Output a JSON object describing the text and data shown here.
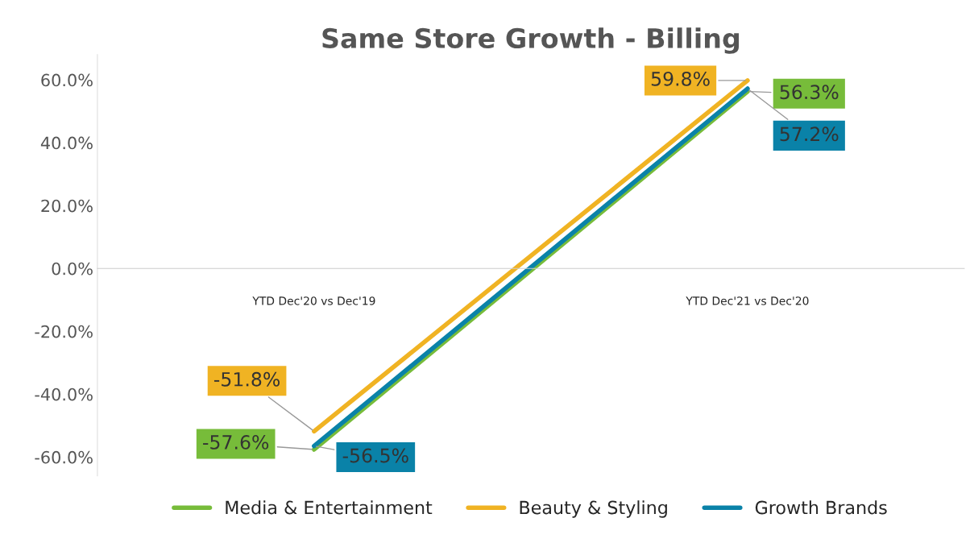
{
  "chart_data": {
    "type": "line",
    "title": "Same Store Growth - Billing",
    "categories": [
      "YTD Dec'20 vs Dec'19",
      "YTD Dec'21 vs Dec'20"
    ],
    "series": [
      {
        "name": "Media & Entertainment",
        "color": "#77bc3a",
        "values": [
          -57.6,
          56.3
        ],
        "value_labels": [
          "-57.6%",
          "56.3%"
        ]
      },
      {
        "name": "Beauty & Styling",
        "color": "#f0b323",
        "values": [
          -51.8,
          59.8
        ],
        "value_labels": [
          "-51.8%",
          "59.8%"
        ]
      },
      {
        "name": "Growth Brands",
        "color": "#0a82a8",
        "values": [
          -56.5,
          57.2
        ],
        "value_labels": [
          "-56.5%",
          "57.2%"
        ]
      }
    ],
    "ylim": [
      -66,
      68
    ],
    "yticks": [
      {
        "value": -60,
        "label": "-60.0%"
      },
      {
        "value": -40,
        "label": "-40.0%"
      },
      {
        "value": -20,
        "label": "-20.0%"
      },
      {
        "value": 0,
        "label": "0.0%"
      },
      {
        "value": 20,
        "label": "20.0%"
      },
      {
        "value": 40,
        "label": "40.0%"
      },
      {
        "value": 60,
        "label": "60.0%"
      }
    ],
    "legend": "bottom",
    "line_style": "solid"
  }
}
